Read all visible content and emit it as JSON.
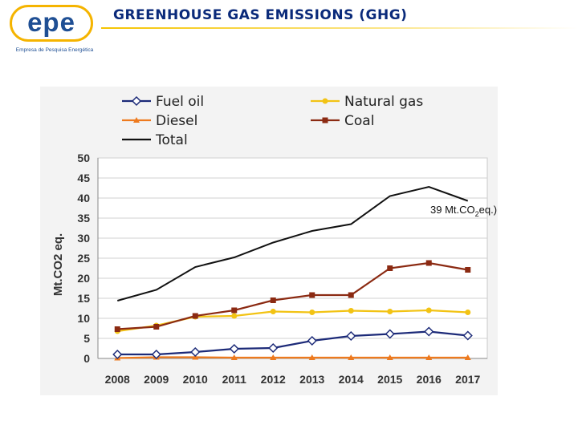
{
  "header": {
    "logo_text": "epe",
    "logo_subtitle": "Empresa de Pesquisa Energética",
    "title": "GREENHOUSE GAS EMISSIONS (GHG)"
  },
  "colors": {
    "title": "#0a2a7a",
    "logo_ring": "#f5b400",
    "logo_text": "#1f4f94"
  },
  "chart_data": {
    "type": "line",
    "title": "",
    "xlabel": "",
    "ylabel": "Mt.CO2 eq.",
    "x": [
      "2008",
      "2009",
      "2010",
      "2011",
      "2012",
      "2013",
      "2014",
      "2015",
      "2016",
      "2017"
    ],
    "ylim": [
      0,
      50
    ],
    "yticks": [
      0,
      5,
      10,
      15,
      20,
      25,
      30,
      35,
      40,
      45,
      50
    ],
    "grid": true,
    "legend_position": "top",
    "series": [
      {
        "name": "Fuel oil",
        "color": "#1c2a78",
        "marker": "diamond",
        "values": [
          1.0,
          1.0,
          1.6,
          2.4,
          2.6,
          4.4,
          5.6,
          6.1,
          6.7,
          5.7
        ]
      },
      {
        "name": "Natural gas",
        "color": "#f2c314",
        "marker": "circle",
        "values": [
          6.8,
          8.2,
          10.4,
          10.6,
          11.7,
          11.5,
          11.9,
          11.7,
          12.0,
          11.5
        ]
      },
      {
        "name": "Diesel",
        "color": "#ee7a1e",
        "marker": "triangle",
        "values": [
          0.1,
          0.3,
          0.3,
          0.2,
          0.2,
          0.2,
          0.2,
          0.2,
          0.2,
          0.2
        ]
      },
      {
        "name": "Coal",
        "color": "#8b2a12",
        "marker": "square",
        "values": [
          7.3,
          7.9,
          10.6,
          12.0,
          14.5,
          15.8,
          15.8,
          22.5,
          23.8,
          22.1
        ]
      },
      {
        "name": "Total",
        "color": "#111111",
        "marker": "none",
        "values": [
          14.4,
          17.1,
          22.8,
          25.2,
          28.9,
          31.8,
          33.5,
          40.5,
          42.8,
          39.3
        ]
      }
    ],
    "annotation": {
      "text_main": "39 Mt.CO",
      "text_sub": "2",
      "text_tail": "eq.)",
      "anchor_x": "2017",
      "anchor_y": 39
    }
  }
}
